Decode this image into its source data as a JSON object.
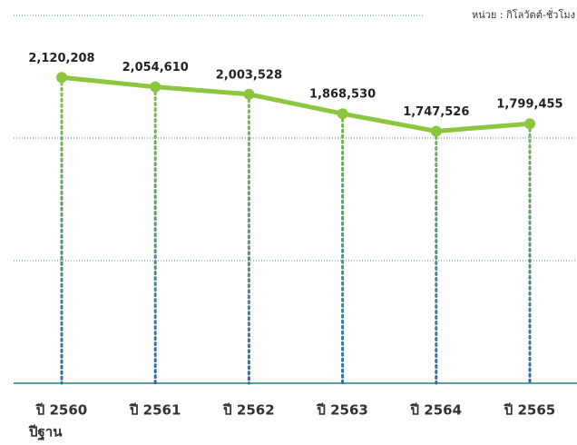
{
  "chart_data": {
    "type": "line",
    "unit_label": "หน่วย : กิโลวัตต์-ชั่วโมง",
    "categories": [
      "ปี 2560",
      "ปี 2561",
      "ปี 2562",
      "ปี 2563",
      "ปี 2564",
      "ปี 2565"
    ],
    "base_year_label": "ปีฐาน",
    "values": [
      2120208,
      2054610,
      2003528,
      1868530,
      1747526,
      1799455
    ],
    "value_labels": [
      "2,120,208",
      "2,054,610",
      "2,003,528",
      "1,868,530",
      "1,747,526",
      "1,799,455"
    ],
    "color": "#8cc63f",
    "ylim": [
      0,
      2550000
    ],
    "yticks": [
      0,
      850000,
      1700000,
      2550000
    ],
    "grid": true
  }
}
